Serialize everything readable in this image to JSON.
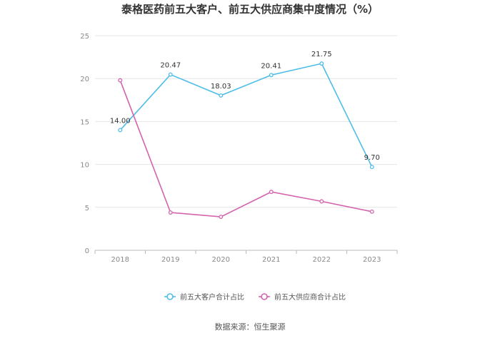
{
  "chart_data": {
    "type": "line",
    "title": "泰格医药前五大客户、前五大供应商集中度情况（%）",
    "categories": [
      "2018",
      "2019",
      "2020",
      "2021",
      "2022",
      "2023"
    ],
    "ylim": [
      0,
      25
    ],
    "yticks": [
      0,
      5,
      10,
      15,
      20,
      25
    ],
    "grid": true,
    "legend_position": "bottom",
    "series": [
      {
        "name": "前五大客户合计占比",
        "color": "#4dbde8",
        "values": [
          14.0,
          20.47,
          18.03,
          20.41,
          21.75,
          9.7
        ],
        "labels": [
          "14.00",
          "20.47",
          "18.03",
          "20.41",
          "21.75",
          "9.70"
        ]
      },
      {
        "name": "前五大供应商合计占比",
        "color": "#d462ac",
        "values": [
          19.8,
          4.4,
          3.9,
          6.8,
          5.7,
          4.5
        ],
        "labels": null
      }
    ]
  },
  "source": "数据来源：恒生聚源"
}
